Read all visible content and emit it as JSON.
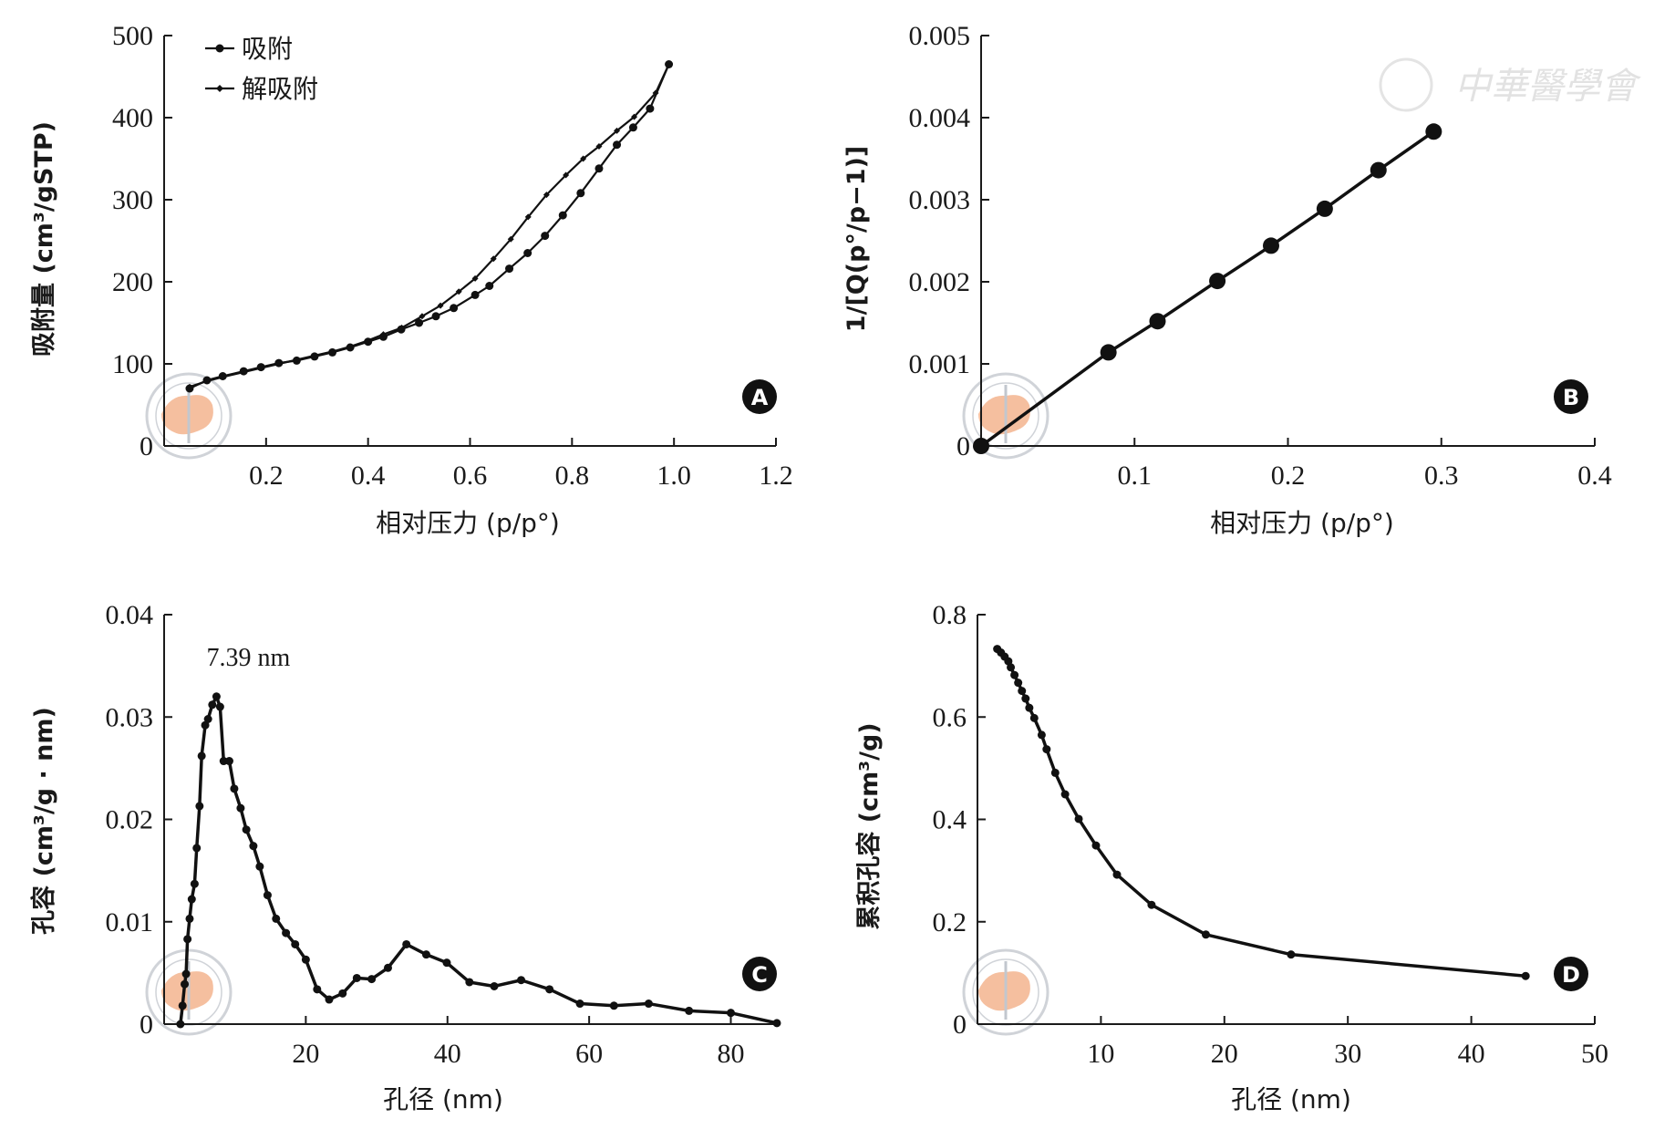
{
  "watermark": {
    "text": "中華醫學會",
    "seal_color": "#f4b58f",
    "ring_color": "#c8ccd2"
  },
  "chart_data": [
    {
      "id": "A",
      "type": "line",
      "badge": "A",
      "xlabel": "相对压力 (p/p°)",
      "ylabel": "吸附量 (cm³/gSTP)",
      "xlim": [
        0,
        1.2
      ],
      "ylim": [
        0,
        500
      ],
      "xticks": [
        0.2,
        0.4,
        0.6,
        0.8,
        1.0,
        1.2
      ],
      "xticklabels": [
        "0.2",
        "0.4",
        "0.6",
        "0.8",
        "1.0",
        "1.2"
      ],
      "yticks": [
        0,
        100,
        200,
        300,
        400,
        500
      ],
      "yticklabels": [
        "0",
        "100",
        "200",
        "300",
        "400",
        "500"
      ],
      "legend_placement": "top-left",
      "series": [
        {
          "name": "吸附",
          "marker": "circle",
          "x": [
            0.05,
            0.084,
            0.115,
            0.156,
            0.19,
            0.225,
            0.26,
            0.295,
            0.33,
            0.365,
            0.4,
            0.43,
            0.465,
            0.5,
            0.533,
            0.568,
            0.61,
            0.638,
            0.677,
            0.713,
            0.747,
            0.782,
            0.817,
            0.853,
            0.888,
            0.92,
            0.953,
            0.99
          ],
          "y": [
            70,
            80,
            85,
            91,
            96,
            101,
            104,
            109,
            114,
            120,
            127,
            133,
            142,
            150,
            158,
            168,
            184,
            195,
            216,
            235,
            256,
            281,
            308,
            338,
            367,
            388,
            411,
            465
          ]
        },
        {
          "name": "解吸附",
          "marker": "diamond",
          "x": [
            0.99,
            0.964,
            0.922,
            0.888,
            0.853,
            0.822,
            0.788,
            0.75,
            0.714,
            0.68,
            0.646,
            0.61,
            0.578,
            0.542,
            0.506,
            0.466,
            0.43,
            0.398,
            0.365,
            0.33,
            0.295,
            0.26,
            0.225,
            0.19,
            0.156,
            0.115,
            0.084,
            0.05
          ],
          "y": [
            465,
            430,
            401,
            384,
            365,
            350,
            330,
            306,
            279,
            252,
            228,
            204,
            188,
            171,
            158,
            144,
            136,
            128,
            121,
            115,
            110,
            105,
            100,
            95,
            90,
            84,
            79,
            72
          ]
        }
      ]
    },
    {
      "id": "B",
      "type": "line",
      "badge": "B",
      "xlabel": "相对压力 (p/p°)",
      "ylabel": "1/[Q(p°/p−1)]",
      "xlim": [
        0,
        0.4
      ],
      "ylim": [
        0,
        0.005
      ],
      "xticks": [
        0.1,
        0.2,
        0.3,
        0.4
      ],
      "xticklabels": [
        "0.1",
        "0.2",
        "0.3",
        "0.4"
      ],
      "yticks": [
        0,
        0.001,
        0.002,
        0.003,
        0.004,
        0.005
      ],
      "yticklabels": [
        "0",
        "0.001",
        "0.002",
        "0.003",
        "0.004",
        "0.005"
      ],
      "series": [
        {
          "marker": "circle",
          "x": [
            0,
            0.083,
            0.115,
            0.154,
            0.189,
            0.224,
            0.259,
            0.295
          ],
          "y": [
            0,
            0.00114,
            0.00152,
            0.00201,
            0.00244,
            0.00289,
            0.00336,
            0.00383
          ]
        }
      ]
    },
    {
      "id": "C",
      "type": "line",
      "badge": "C",
      "xlabel": "孔径 (nm)",
      "ylabel": "孔容 (cm³/g · nm)",
      "xlim": [
        0,
        86.5
      ],
      "ylim": [
        0,
        0.04
      ],
      "xticks": [
        20,
        40,
        60,
        80
      ],
      "xticklabels": [
        "20",
        "40",
        "60",
        "80"
      ],
      "yticks": [
        0,
        0.01,
        0.02,
        0.03,
        0.04
      ],
      "yticklabels": [
        "0",
        "0.01",
        "0.02",
        "0.03",
        "0.04"
      ],
      "annotation": {
        "text": "7.39 nm",
        "x": 7.39,
        "y": 0.032
      },
      "series": [
        {
          "marker": "circle",
          "x": [
            2.3,
            2.6,
            2.9,
            3.1,
            3.3,
            3.6,
            3.9,
            4.3,
            4.6,
            5.0,
            5.3,
            5.8,
            6.2,
            6.8,
            7.39,
            7.9,
            8.4,
            9.2,
            9.9,
            10.8,
            11.6,
            12.6,
            13.5,
            14.6,
            15.8,
            17.2,
            18.5,
            20,
            21.6,
            23.3,
            25.2,
            27.2,
            29.3,
            31.6,
            34.2,
            37,
            39.9,
            43.1,
            46.6,
            50.4,
            54.4,
            58.7,
            63.5,
            68.4,
            74.1,
            80,
            86.5
          ],
          "y": [
            0,
            0.0018,
            0.0039,
            0.0049,
            0.0083,
            0.0103,
            0.0122,
            0.0137,
            0.0172,
            0.0213,
            0.0262,
            0.0292,
            0.0298,
            0.0312,
            0.032,
            0.031,
            0.0257,
            0.0257,
            0.023,
            0.0211,
            0.019,
            0.0174,
            0.0154,
            0.0126,
            0.0103,
            0.0089,
            0.0078,
            0.0063,
            0.0034,
            0.0024,
            0.003,
            0.0045,
            0.0044,
            0.0055,
            0.0078,
            0.0068,
            0.006,
            0.0041,
            0.0037,
            0.0043,
            0.0034,
            0.002,
            0.0018,
            0.002,
            0.0013,
            0.0011,
            0.0001
          ]
        }
      ]
    },
    {
      "id": "D",
      "type": "line",
      "badge": "D",
      "xlabel": "孔径 (nm)",
      "ylabel": "累积孔容 (cm³/g)",
      "xlim": [
        0,
        50
      ],
      "ylim": [
        0,
        0.8
      ],
      "xticks": [
        10,
        20,
        30,
        40,
        50
      ],
      "xticklabels": [
        "10",
        "20",
        "30",
        "40",
        "50"
      ],
      "yticks": [
        0,
        0.2,
        0.4,
        0.6,
        0.8
      ],
      "yticklabels": [
        "0",
        "0.2",
        "0.4",
        "0.6",
        "0.8"
      ],
      "series": [
        {
          "marker": "circle",
          "x": [
            1.6,
            1.9,
            2.2,
            2.5,
            2.7,
            3.0,
            3.3,
            3.6,
            3.9,
            4.2,
            4.6,
            5.2,
            5.6,
            6.3,
            7.1,
            8.2,
            9.6,
            11.3,
            14.1,
            18.5,
            25.4,
            44.4
          ],
          "y": [
            0.733,
            0.726,
            0.718,
            0.709,
            0.697,
            0.682,
            0.667,
            0.651,
            0.636,
            0.618,
            0.598,
            0.565,
            0.537,
            0.491,
            0.449,
            0.401,
            0.349,
            0.292,
            0.233,
            0.175,
            0.136,
            0.094
          ]
        }
      ]
    }
  ]
}
